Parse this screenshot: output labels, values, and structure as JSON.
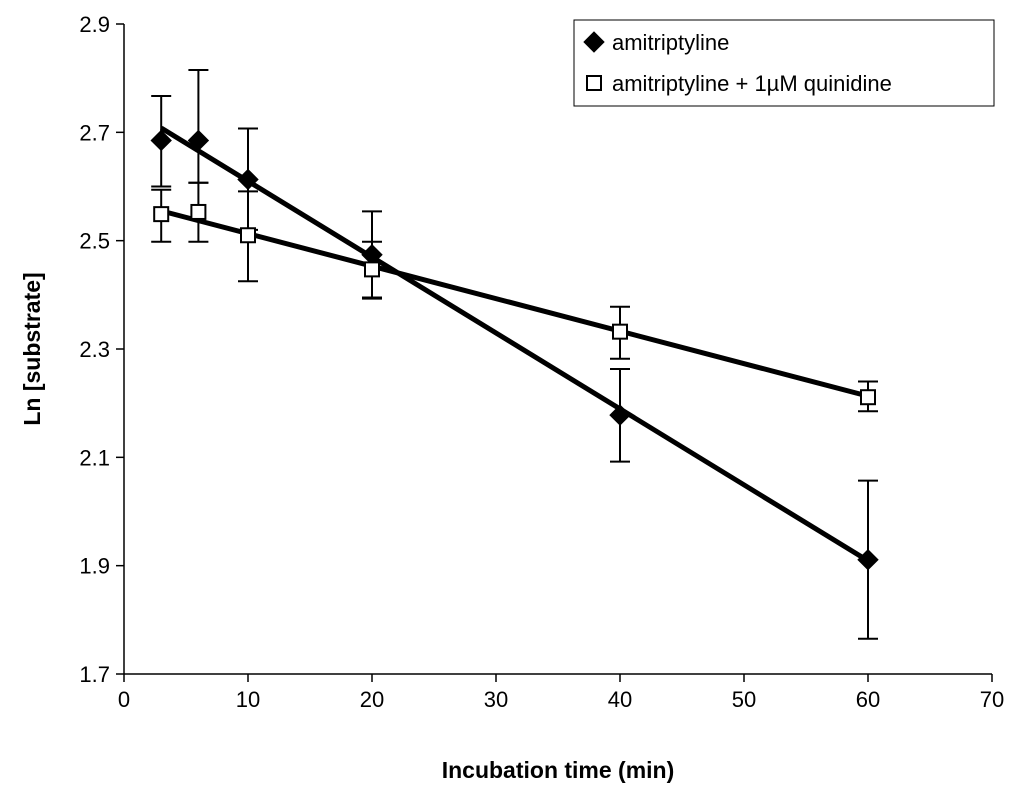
{
  "chart_data": {
    "type": "scatter",
    "title": "",
    "xlabel": "Incubation time (min)",
    "ylabel": "Ln [substrate]",
    "xlim": [
      0,
      70
    ],
    "ylim": [
      1.7,
      2.9
    ],
    "xticks": [
      0,
      10,
      20,
      30,
      40,
      50,
      60,
      70
    ],
    "yticks": [
      1.7,
      1.9,
      2.1,
      2.3,
      2.5,
      2.7,
      2.9
    ],
    "xtick_labels": [
      "0",
      "10",
      "20",
      "30",
      "40",
      "50",
      "60",
      "70"
    ],
    "ytick_labels": [
      "1.7",
      "1.9",
      "2.1",
      "2.3",
      "2.5",
      "2.7",
      "2.9"
    ],
    "grid": false,
    "legend_position": "top-right",
    "series": [
      {
        "name": "amitriptyline",
        "marker": "filled-diamond",
        "color": "#000000",
        "x": [
          3,
          6,
          10,
          20,
          40,
          60
        ],
        "y": [
          2.685,
          2.685,
          2.613,
          2.474,
          2.178,
          1.911
        ],
        "err_low": [
          2.6,
          2.607,
          2.52,
          2.395,
          2.092,
          1.765
        ],
        "err_high": [
          2.767,
          2.815,
          2.707,
          2.554,
          2.263,
          2.057
        ],
        "fit": {
          "x": [
            3,
            60
          ],
          "y": [
            2.708,
            1.909
          ]
        }
      },
      {
        "name": "amitriptyline + 1µM quinidine",
        "marker": "open-square",
        "color": "#000000",
        "x": [
          3,
          6,
          10,
          20,
          40,
          60
        ],
        "y": [
          2.549,
          2.553,
          2.51,
          2.447,
          2.332,
          2.211
        ],
        "err_low": [
          2.498,
          2.498,
          2.425,
          2.393,
          2.282,
          2.185
        ],
        "err_high": [
          2.594,
          2.607,
          2.591,
          2.498,
          2.378,
          2.24
        ],
        "fit": {
          "x": [
            3,
            60
          ],
          "y": [
            2.555,
            2.213
          ]
        }
      }
    ]
  }
}
